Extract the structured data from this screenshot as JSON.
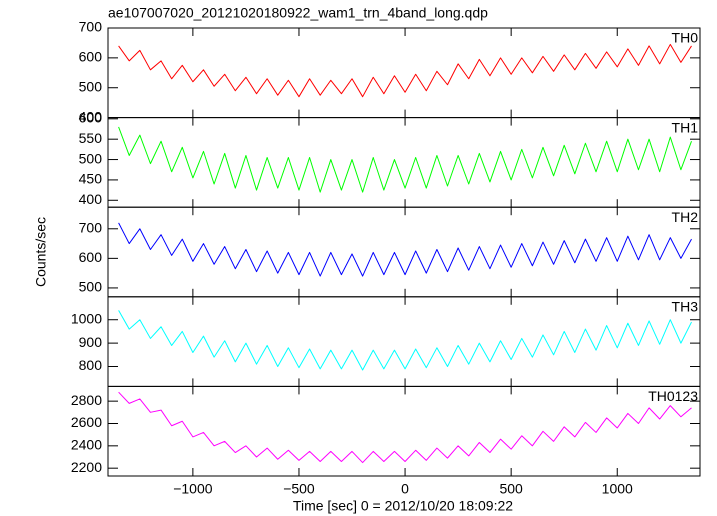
{
  "chart_data": {
    "type": "line",
    "title": "ae107007020_20121020180922_wam1_trn_4band_long.qdp",
    "xlabel": "Time [sec] 0 = 2012/10/20 18:09:22",
    "ylabel": "Counts/sec",
    "xlim": [
      -1400,
      1390
    ],
    "xticks": [
      {
        "value": -1000,
        "label": "−1000"
      },
      {
        "value": -500,
        "label": "−500"
      },
      0,
      500,
      1000
    ],
    "x": [
      -1350,
      -1300,
      -1250,
      -1200,
      -1150,
      -1100,
      -1050,
      -1000,
      -950,
      -900,
      -850,
      -800,
      -750,
      -700,
      -650,
      -600,
      -550,
      -500,
      -450,
      -400,
      -350,
      -300,
      -250,
      -200,
      -150,
      -100,
      -50,
      0,
      50,
      100,
      150,
      200,
      250,
      300,
      350,
      400,
      450,
      500,
      550,
      600,
      650,
      700,
      750,
      800,
      850,
      900,
      950,
      1000,
      1050,
      1100,
      1150,
      1200,
      1250,
      1300,
      1350
    ],
    "series": [
      {
        "name": "TH0",
        "color": "#ff0000",
        "ylim": [
          400,
          700
        ],
        "yticks": [
          400,
          500,
          600,
          700
        ],
        "values": [
          640,
          590,
          625,
          560,
          590,
          530,
          575,
          520,
          560,
          505,
          545,
          490,
          535,
          480,
          530,
          475,
          525,
          470,
          530,
          475,
          525,
          480,
          530,
          470,
          535,
          480,
          540,
          485,
          545,
          490,
          555,
          510,
          580,
          530,
          595,
          540,
          600,
          545,
          600,
          550,
          605,
          555,
          610,
          560,
          615,
          565,
          620,
          570,
          630,
          575,
          640,
          580,
          645,
          585,
          640
        ]
      },
      {
        "name": "TH1",
        "color": "#00ff00",
        "ylim": [
          383,
          603
        ],
        "yticks": [
          400,
          450,
          500,
          550,
          600
        ],
        "values": [
          580,
          510,
          560,
          490,
          545,
          470,
          530,
          455,
          520,
          440,
          515,
          430,
          510,
          425,
          505,
          430,
          505,
          425,
          505,
          420,
          500,
          425,
          500,
          420,
          505,
          425,
          500,
          430,
          505,
          430,
          510,
          435,
          510,
          440,
          515,
          445,
          520,
          450,
          525,
          455,
          530,
          460,
          535,
          465,
          540,
          470,
          545,
          470,
          550,
          475,
          550,
          470,
          555,
          475,
          545
        ]
      },
      {
        "name": "TH2",
        "color": "#0000ff",
        "ylim": [
          470,
          773
        ],
        "yticks": [
          500,
          600,
          700
        ],
        "values": [
          720,
          650,
          700,
          630,
          680,
          610,
          665,
          590,
          650,
          580,
          640,
          565,
          630,
          555,
          625,
          550,
          620,
          545,
          620,
          540,
          620,
          545,
          615,
          540,
          620,
          545,
          620,
          545,
          625,
          550,
          630,
          555,
          635,
          560,
          640,
          565,
          645,
          570,
          650,
          575,
          655,
          580,
          660,
          585,
          665,
          590,
          670,
          590,
          675,
          595,
          680,
          595,
          670,
          600,
          665
        ]
      },
      {
        "name": "TH3",
        "color": "#00ffff",
        "ylim": [
          715,
          1098
        ],
        "yticks": [
          800,
          900,
          1000
        ],
        "values": [
          1040,
          960,
          1000,
          920,
          970,
          890,
          950,
          860,
          930,
          840,
          910,
          820,
          900,
          810,
          890,
          800,
          880,
          795,
          875,
          790,
          870,
          790,
          870,
          785,
          870,
          790,
          870,
          790,
          875,
          795,
          880,
          800,
          890,
          810,
          900,
          820,
          910,
          830,
          920,
          840,
          935,
          850,
          950,
          860,
          960,
          870,
          975,
          880,
          985,
          890,
          995,
          895,
          1000,
          900,
          990
        ]
      },
      {
        "name": "TH0123",
        "color": "#ff00ff",
        "ylim": [
          2130,
          2932
        ],
        "yticks": [
          2200,
          2400,
          2600,
          2800
        ],
        "values": [
          2880,
          2780,
          2820,
          2700,
          2720,
          2580,
          2620,
          2480,
          2520,
          2400,
          2440,
          2340,
          2400,
          2300,
          2380,
          2280,
          2360,
          2270,
          2350,
          2260,
          2350,
          2260,
          2350,
          2250,
          2350,
          2260,
          2350,
          2260,
          2360,
          2270,
          2380,
          2290,
          2400,
          2310,
          2430,
          2340,
          2460,
          2370,
          2490,
          2400,
          2530,
          2440,
          2570,
          2480,
          2610,
          2520,
          2650,
          2560,
          2690,
          2600,
          2740,
          2640,
          2760,
          2660,
          2740
        ]
      }
    ]
  }
}
